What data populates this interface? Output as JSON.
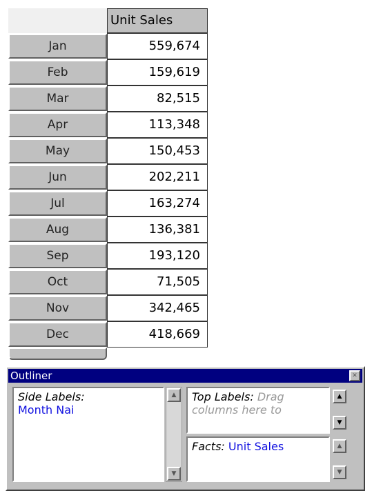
{
  "table": {
    "header": "Unit Sales",
    "rows": [
      [
        "Jan",
        "559,674"
      ],
      [
        "Feb",
        "159,619"
      ],
      [
        "Mar",
        "82,515"
      ],
      [
        "Apr",
        "113,348"
      ],
      [
        "May",
        "150,453"
      ],
      [
        "Jun",
        "202,211"
      ],
      [
        "Jul",
        "163,274"
      ],
      [
        "Aug",
        "136,381"
      ],
      [
        "Sep",
        "193,120"
      ],
      [
        "Oct",
        "71,505"
      ],
      [
        "Nov",
        "342,465"
      ],
      [
        "Dec",
        "418,669"
      ]
    ]
  },
  "outliner": {
    "title": "Outliner",
    "side_labels": "Side Labels:",
    "side_value": "Month Nai",
    "top_labels": "Top Labels:",
    "top_hint": "Drag columns here to",
    "facts": "Facts:",
    "facts_value": "Unit Sales"
  }
}
